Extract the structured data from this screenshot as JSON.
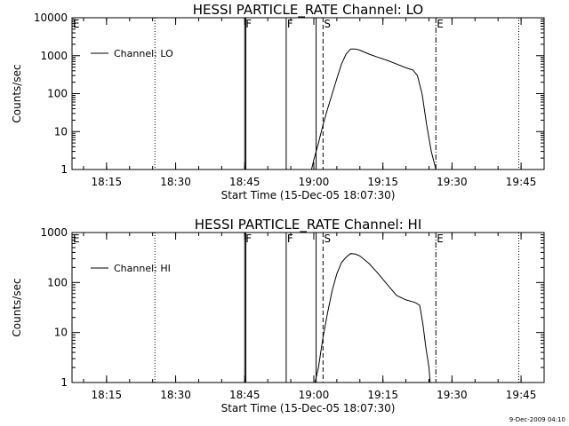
{
  "chart_data": [
    {
      "type": "line",
      "title": "HESSI PARTICLE_RATE Channel: LO",
      "xlabel": "Start Time (15-Dec-05 18:07:30)",
      "ylabel": "Counts/sec",
      "yscale": "log",
      "ylim": [
        1,
        10000
      ],
      "xlim": [
        "18:07:30",
        "19:50:00"
      ],
      "x_ticks": [
        "18:15",
        "18:30",
        "18:45",
        "19:00",
        "19:15",
        "19:30",
        "19:45"
      ],
      "y_ticks": [
        "1",
        "10",
        "100",
        "1000",
        "10000"
      ],
      "legend": "top-left",
      "series": [
        {
          "name": "Channel: LO",
          "color": "#000000",
          "x": [
            "18:59:30",
            "19:00:00",
            "19:01:00",
            "19:02:00",
            "19:03:00",
            "19:04:00",
            "19:05:00",
            "19:06:00",
            "19:07:00",
            "19:08:00",
            "19:09:00",
            "19:10:00",
            "19:12:00",
            "19:14:00",
            "19:16:00",
            "19:18:00",
            "19:20:00",
            "19:21:30",
            "19:22:30",
            "19:23:30",
            "19:24:30",
            "19:25:30",
            "19:26:30"
          ],
          "values": [
            1,
            1.8,
            5,
            15,
            40,
            100,
            250,
            600,
            1100,
            1500,
            1500,
            1400,
            1100,
            900,
            750,
            600,
            480,
            420,
            300,
            100,
            15,
            3,
            1
          ]
        }
      ],
      "markers": [
        {
          "label": "E",
          "time": "18:07:30",
          "style": "dotted"
        },
        {
          "label": "",
          "time": "18:25:30",
          "style": "dotted"
        },
        {
          "label": "F",
          "time": "18:45:00",
          "style": "solid"
        },
        {
          "label": "",
          "time": "18:45:15",
          "style": "solid"
        },
        {
          "label": "F",
          "time": "18:54:00",
          "style": "solid"
        },
        {
          "label": "",
          "time": "19:00:30",
          "style": "solid"
        },
        {
          "label": "S",
          "time": "19:02:00",
          "style": "dashed"
        },
        {
          "label": "E",
          "time": "19:26:30",
          "style": "dashdot"
        },
        {
          "label": "",
          "time": "19:44:30",
          "style": "dotted"
        }
      ]
    },
    {
      "type": "line",
      "title": "HESSI PARTICLE_RATE Channel: HI",
      "xlabel": "Start Time (15-Dec-05 18:07:30)",
      "ylabel": "Counts/sec",
      "yscale": "log",
      "ylim": [
        1,
        1000
      ],
      "xlim": [
        "18:07:30",
        "19:50:00"
      ],
      "x_ticks": [
        "18:15",
        "18:30",
        "18:45",
        "19:00",
        "19:15",
        "19:30",
        "19:45"
      ],
      "y_ticks": [
        "1",
        "10",
        "100",
        "1000"
      ],
      "legend": "top-left",
      "series": [
        {
          "name": "Channel: HI",
          "color": "#000000",
          "x": [
            "19:00:15",
            "19:01:00",
            "19:02:00",
            "19:03:00",
            "19:04:00",
            "19:05:00",
            "19:06:00",
            "19:07:00",
            "19:08:00",
            "19:09:00",
            "19:10:00",
            "19:12:00",
            "19:14:00",
            "19:16:00",
            "19:18:00",
            "19:20:00",
            "19:22:00",
            "19:23:00",
            "19:23:40",
            "19:24:20",
            "19:25:00",
            "19:25:15"
          ],
          "values": [
            1,
            2,
            8,
            25,
            70,
            150,
            250,
            320,
            380,
            370,
            340,
            240,
            150,
            90,
            55,
            45,
            40,
            35,
            15,
            5,
            2,
            1
          ]
        }
      ],
      "markers": [
        {
          "label": "E",
          "time": "18:07:30",
          "style": "dotted"
        },
        {
          "label": "",
          "time": "18:25:30",
          "style": "dotted"
        },
        {
          "label": "F",
          "time": "18:45:00",
          "style": "solid"
        },
        {
          "label": "",
          "time": "18:45:15",
          "style": "solid"
        },
        {
          "label": "F",
          "time": "18:54:00",
          "style": "solid"
        },
        {
          "label": "",
          "time": "19:00:30",
          "style": "solid"
        },
        {
          "label": "S",
          "time": "19:02:00",
          "style": "dashed"
        },
        {
          "label": "E",
          "time": "19:26:30",
          "style": "dashdot"
        },
        {
          "label": "",
          "time": "19:44:30",
          "style": "dotted"
        }
      ]
    }
  ],
  "footer": {
    "timestamp": "9-Dec-2009 04:10"
  }
}
